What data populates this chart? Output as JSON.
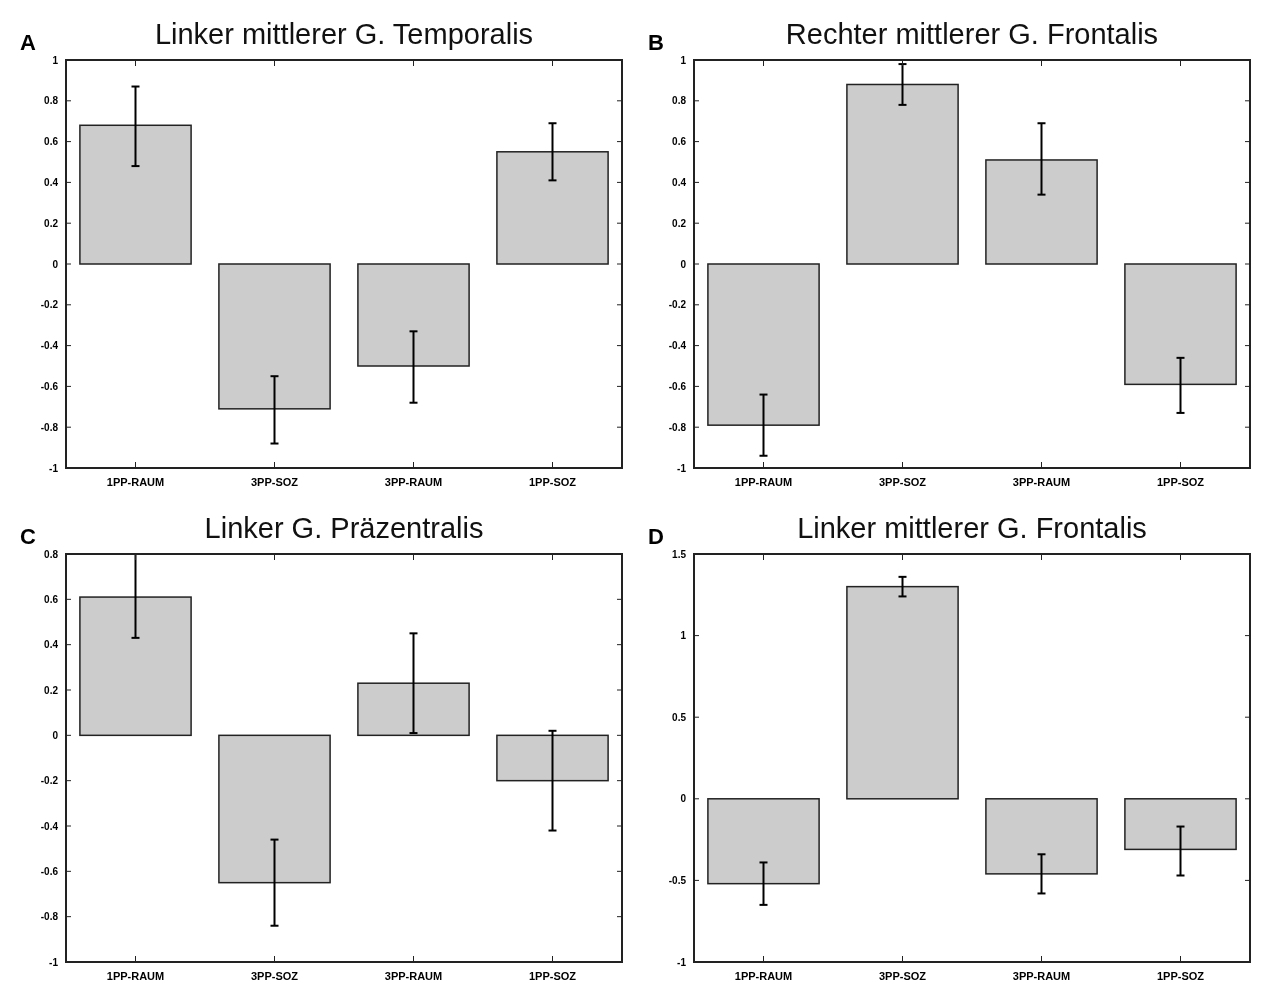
{
  "chart_data": [
    {
      "type": "bar",
      "title": "Linker mittlerer G. Temporalis",
      "annotations": [
        "A"
      ],
      "categories": [
        "1PP-RAUM",
        "3PP-SOZ",
        "3PP-RAUM",
        "1PP-SOZ"
      ],
      "values": [
        0.68,
        -0.71,
        -0.5,
        0.55
      ],
      "errors": [
        [
          0.48,
          0.87
        ],
        [
          -0.88,
          -0.55
        ],
        [
          -0.68,
          -0.33
        ],
        [
          0.41,
          0.69
        ]
      ],
      "color": "#cccccc",
      "ylim": [
        -1,
        1
      ],
      "yticks": [
        -1,
        -0.8,
        -0.6,
        -0.4,
        -0.2,
        0,
        0.2,
        0.4,
        0.6,
        0.8,
        1
      ]
    },
    {
      "type": "bar",
      "title": "Rechter mittlerer G. Frontalis",
      "annotations": [
        "B"
      ],
      "categories": [
        "1PP-RAUM",
        "3PP-SOZ",
        "3PP-RAUM",
        "1PP-SOZ"
      ],
      "values": [
        -0.79,
        0.88,
        0.51,
        -0.59
      ],
      "errors": [
        [
          -0.94,
          -0.64
        ],
        [
          0.78,
          0.98
        ],
        [
          0.34,
          0.69
        ],
        [
          -0.73,
          -0.46
        ]
      ],
      "color": "#cccccc",
      "ylim": [
        -1,
        1
      ],
      "yticks": [
        -1,
        -0.8,
        -0.6,
        -0.4,
        -0.2,
        0,
        0.2,
        0.4,
        0.6,
        0.8,
        1
      ]
    },
    {
      "type": "bar",
      "title": "Linker G. Präzentralis",
      "annotations": [
        "C"
      ],
      "categories": [
        "1PP-RAUM",
        "3PP-SOZ",
        "3PP-RAUM",
        "1PP-SOZ"
      ],
      "values": [
        0.61,
        -0.65,
        0.23,
        -0.2
      ],
      "errors": [
        [
          0.43,
          0.8
        ],
        [
          -0.84,
          -0.46
        ],
        [
          0.01,
          0.45
        ],
        [
          -0.42,
          0.02
        ]
      ],
      "color": "#cccccc",
      "ylim": [
        -1,
        0.8
      ],
      "yticks": [
        -1,
        -0.8,
        -0.6,
        -0.4,
        -0.2,
        0,
        0.2,
        0.4,
        0.6,
        0.8
      ]
    },
    {
      "type": "bar",
      "title": "Linker mittlerer G. Frontalis",
      "annotations": [
        "D"
      ],
      "categories": [
        "1PP-RAUM",
        "3PP-SOZ",
        "3PP-RAUM",
        "1PP-SOZ"
      ],
      "values": [
        -0.52,
        1.3,
        -0.46,
        -0.31
      ],
      "errors": [
        [
          -0.65,
          -0.39
        ],
        [
          1.24,
          1.36
        ],
        [
          -0.58,
          -0.34
        ],
        [
          -0.47,
          -0.17
        ]
      ],
      "color": "#cccccc",
      "ylim": [
        -1,
        1.5
      ],
      "yticks": [
        -1,
        -0.5,
        0,
        0.5,
        1,
        1.5
      ]
    }
  ]
}
